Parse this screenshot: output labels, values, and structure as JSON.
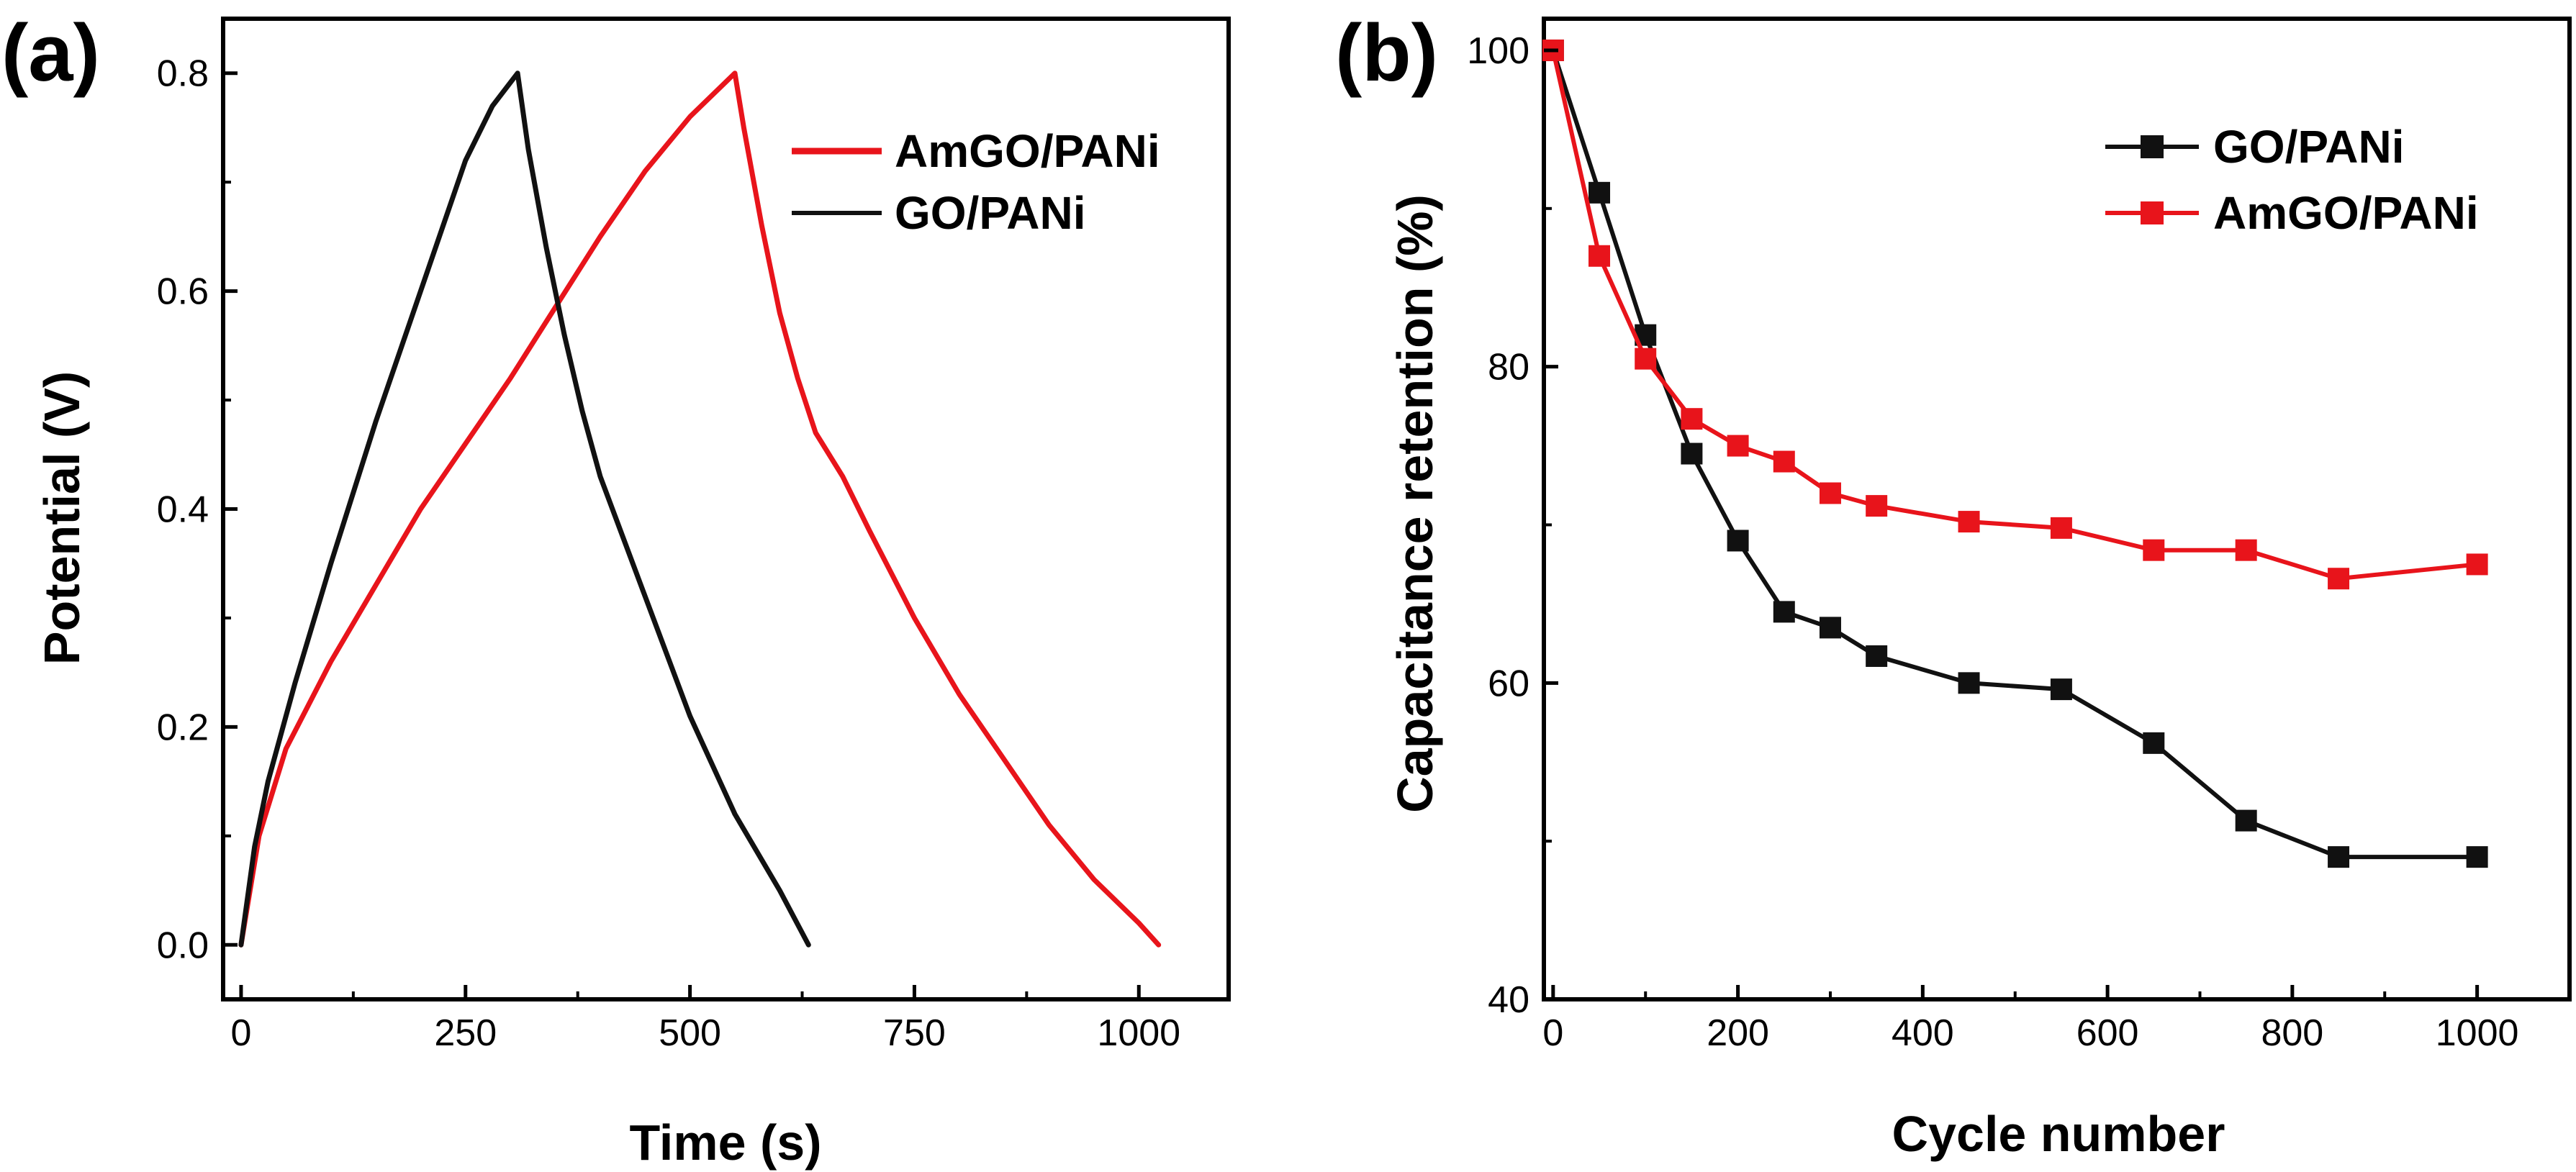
{
  "chart_data": [
    {
      "panel_label": "(a)",
      "type": "line",
      "title": "",
      "xlabel": "Time (s)",
      "ylabel": "Potential (V)",
      "xlim": [
        -20,
        1100
      ],
      "ylim": [
        -0.05,
        0.85
      ],
      "xticks": [
        0,
        250,
        500,
        750,
        1000
      ],
      "xtick_labels": [
        "0",
        "250",
        "500",
        "750",
        "1000"
      ],
      "yticks": [
        0.0,
        0.2,
        0.4,
        0.6,
        0.8
      ],
      "ytick_labels": [
        "0.0",
        "0.2",
        "0.4",
        "0.6",
        "0.8"
      ],
      "grid": false,
      "legend_position": "top-right",
      "series": [
        {
          "name": "AmGO/PANi",
          "color": "#e8141b",
          "marker": "none",
          "x": [
            0,
            20,
            50,
            100,
            150,
            200,
            250,
            300,
            350,
            400,
            450,
            500,
            550,
            560,
            580,
            600,
            620,
            640,
            670,
            700,
            750,
            800,
            850,
            900,
            950,
            1000,
            1022
          ],
          "y": [
            0.0,
            0.1,
            0.18,
            0.26,
            0.33,
            0.4,
            0.46,
            0.52,
            0.585,
            0.65,
            0.71,
            0.76,
            0.8,
            0.75,
            0.66,
            0.58,
            0.52,
            0.47,
            0.43,
            0.38,
            0.3,
            0.23,
            0.17,
            0.11,
            0.06,
            0.02,
            0.0
          ]
        },
        {
          "name": "GO/PANi",
          "color": "#111111",
          "marker": "none",
          "x": [
            0,
            15,
            30,
            60,
            100,
            150,
            200,
            250,
            280,
            308,
            320,
            340,
            360,
            380,
            400,
            450,
            500,
            550,
            600,
            632
          ],
          "y": [
            0.0,
            0.09,
            0.15,
            0.24,
            0.35,
            0.48,
            0.6,
            0.72,
            0.77,
            0.8,
            0.73,
            0.64,
            0.56,
            0.49,
            0.43,
            0.32,
            0.21,
            0.12,
            0.05,
            0.0
          ]
        }
      ]
    },
    {
      "panel_label": "(b)",
      "type": "line",
      "title": "",
      "xlabel": "Cycle number",
      "ylabel": "Capacitance retention (%)",
      "xlim": [
        -10,
        1100
      ],
      "ylim": [
        40,
        102
      ],
      "xticks": [
        0,
        200,
        400,
        600,
        800,
        1000
      ],
      "xtick_labels": [
        "0",
        "200",
        "400",
        "600",
        "800",
        "1000"
      ],
      "yticks": [
        40,
        60,
        80,
        100
      ],
      "ytick_labels": [
        "40",
        "60",
        "80",
        "100"
      ],
      "grid": false,
      "legend_position": "top-right",
      "series": [
        {
          "name": "GO/PANi",
          "color": "#111111",
          "marker": "square",
          "x": [
            0,
            50,
            100,
            150,
            200,
            250,
            300,
            350,
            450,
            550,
            650,
            750,
            850,
            1000
          ],
          "y": [
            100,
            91,
            82,
            74.5,
            69,
            64.5,
            63.5,
            61.7,
            60,
            59.6,
            56.2,
            51.3,
            49,
            49
          ]
        },
        {
          "name": "AmGO/PANi",
          "color": "#e8141b",
          "marker": "square",
          "x": [
            0,
            50,
            100,
            150,
            200,
            250,
            300,
            350,
            450,
            550,
            650,
            750,
            850,
            1000
          ],
          "y": [
            100,
            87,
            80.5,
            76.7,
            75,
            74,
            72,
            71.2,
            70.2,
            69.8,
            68.4,
            68.4,
            66.6,
            67.5
          ]
        }
      ]
    }
  ]
}
